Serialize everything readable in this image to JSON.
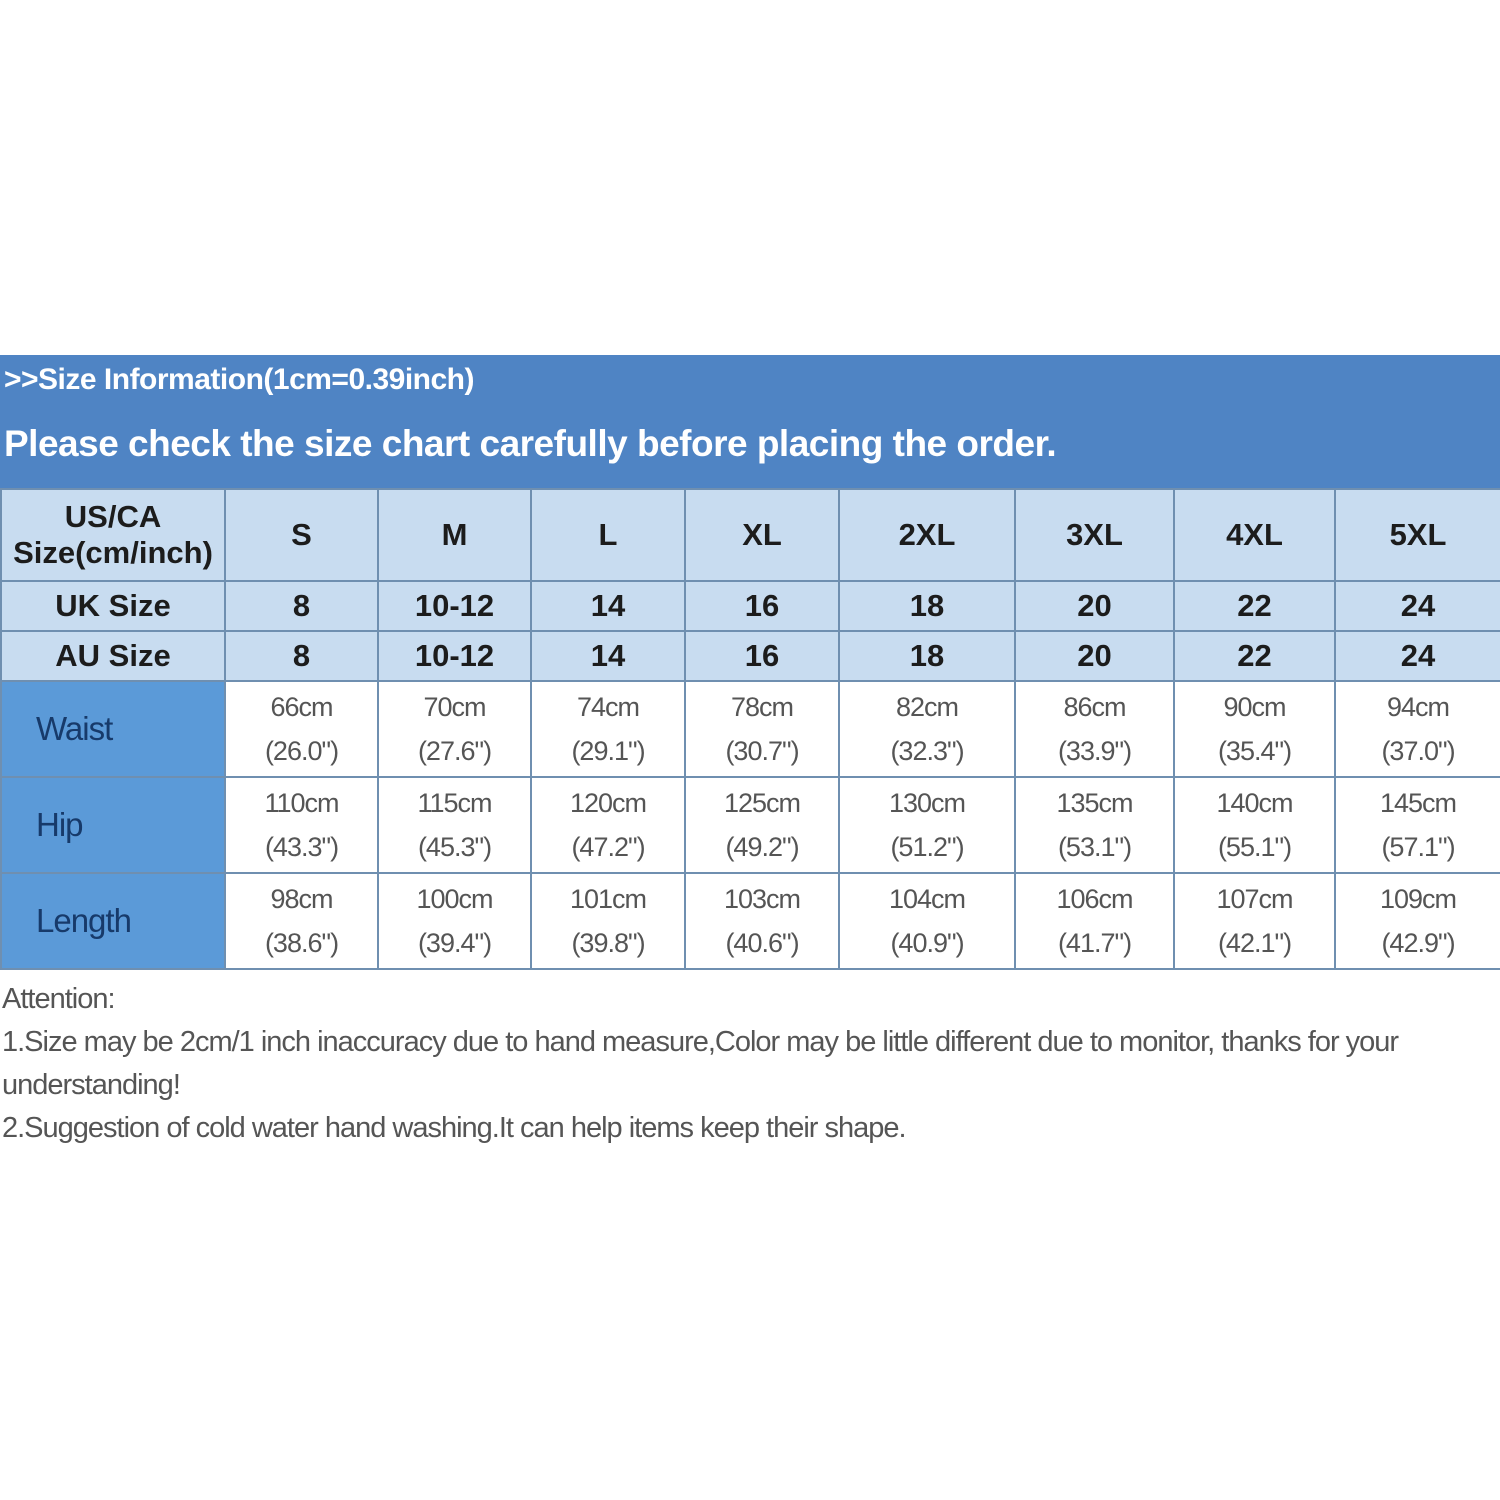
{
  "banner": {
    "line1": ">>Size Information(1cm=0.39inch)",
    "line2": "Please check the size chart carefully before placing the order."
  },
  "colors": {
    "banner": "#4f84c4",
    "header_cells": "#c8dcf0",
    "row_label_cells": "#5b9ad8"
  },
  "table": {
    "header_label": "US/CA Size(cm/inch)",
    "sizes": [
      "S",
      "M",
      "L",
      "XL",
      "2XL",
      "3XL",
      "4XL",
      "5XL"
    ],
    "uk": {
      "label": "UK Size",
      "values": [
        "8",
        "10-12",
        "14",
        "16",
        "18",
        "20",
        "22",
        "24"
      ]
    },
    "au": {
      "label": "AU Size",
      "values": [
        "8",
        "10-12",
        "14",
        "16",
        "18",
        "20",
        "22",
        "24"
      ]
    },
    "measures": [
      {
        "label": "Waist",
        "cm": [
          "66cm",
          "70cm",
          "74cm",
          "78cm",
          "82cm",
          "86cm",
          "90cm",
          "94cm"
        ],
        "inch": [
          "(26.0\")",
          "(27.6\")",
          "(29.1\")",
          "(30.7\")",
          "(32.3\")",
          "(33.9\")",
          "(35.4\")",
          "(37.0\")"
        ]
      },
      {
        "label": "Hip",
        "cm": [
          "110cm",
          "115cm",
          "120cm",
          "125cm",
          "130cm",
          "135cm",
          "140cm",
          "145cm"
        ],
        "inch": [
          "(43.3\")",
          "(45.3\")",
          "(47.2\")",
          "(49.2\")",
          "(51.2\")",
          "(53.1\")",
          "(55.1\")",
          "(57.1\")"
        ]
      },
      {
        "label": "Length",
        "cm": [
          "98cm",
          "100cm",
          "101cm",
          "103cm",
          "104cm",
          "106cm",
          "107cm",
          "109cm"
        ],
        "inch": [
          "(38.6\")",
          "(39.4\")",
          "(39.8\")",
          "(40.6\")",
          "(40.9\")",
          "(41.7\")",
          "(42.1\")",
          "(42.9\")"
        ]
      }
    ]
  },
  "notes": {
    "title": "Attention:",
    "items": [
      "1.Size may be 2cm/1 inch inaccuracy due to hand measure,Color may be little different due to monitor, thanks for your understanding!",
      "2.Suggestion of cold water hand washing.It can help items keep their shape."
    ]
  }
}
